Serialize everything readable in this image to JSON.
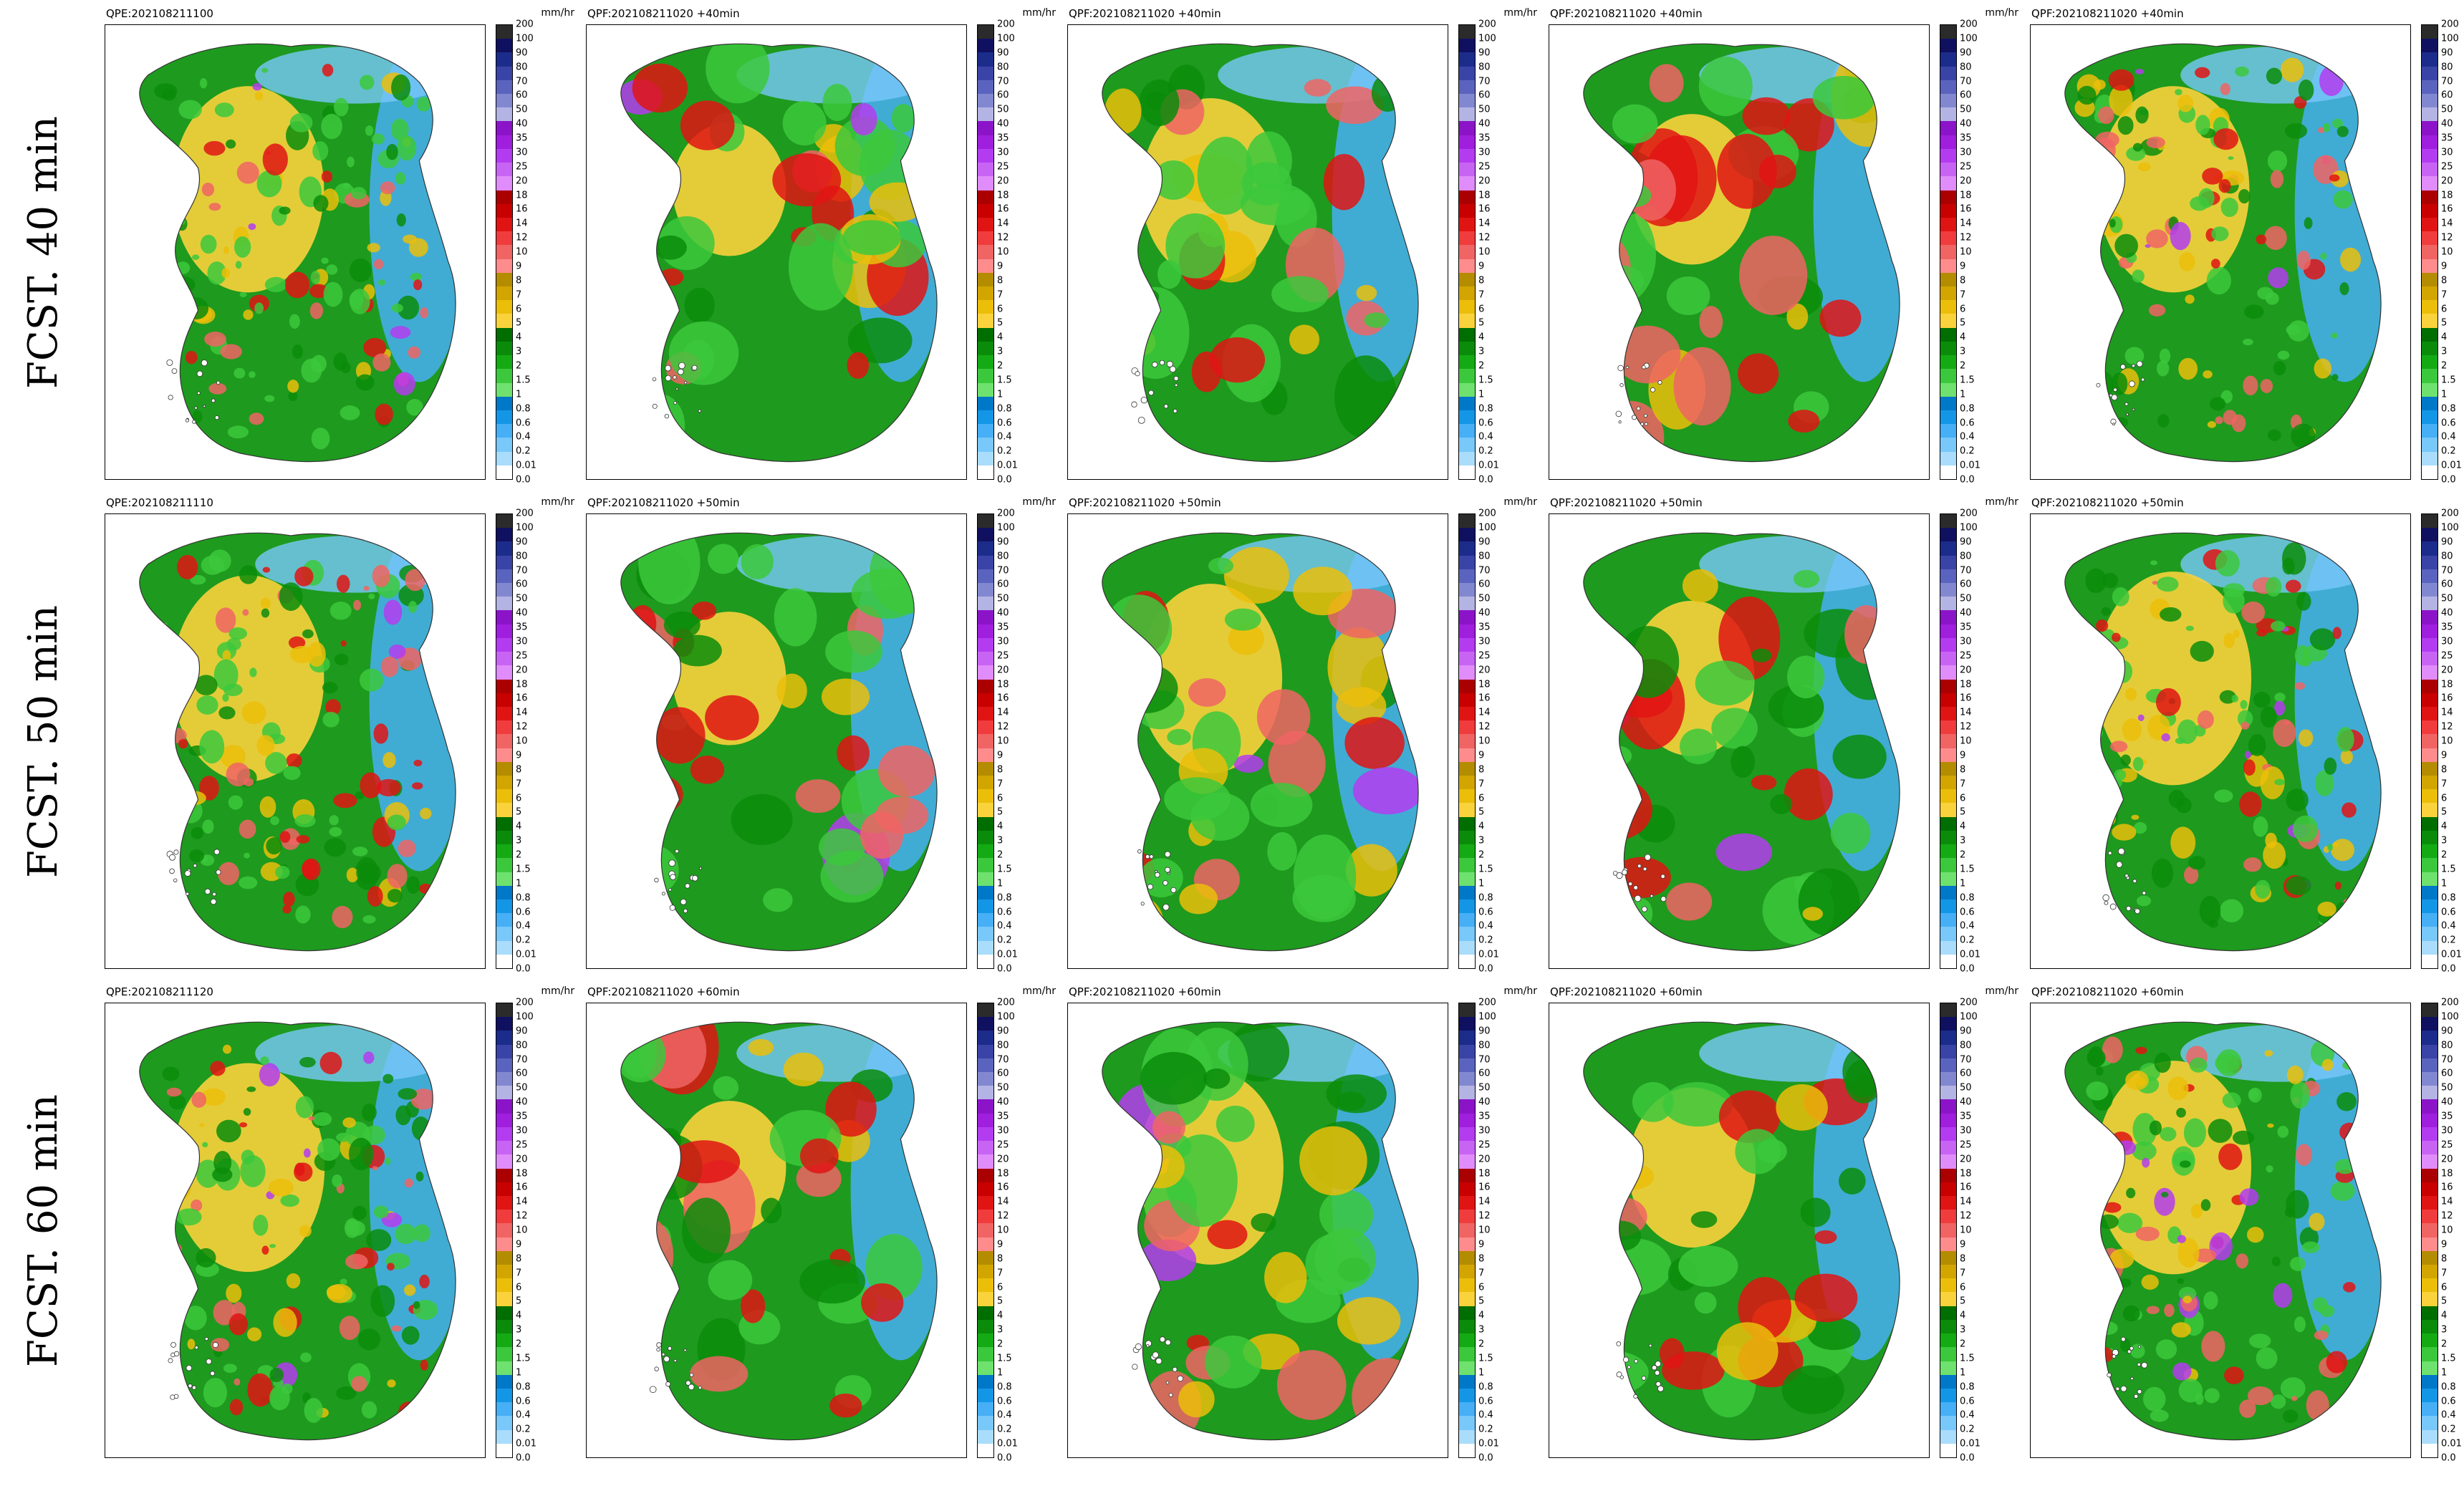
{
  "chart_data": {
    "type": "heatmap",
    "description_level": "grid of precipitation maps",
    "row_labels": [
      "FCST. 40 min",
      "FCST. 50 min",
      "FCST. 60 min"
    ],
    "colorbar": {
      "unit": "mm/hr",
      "levels": [
        "200",
        "100",
        "90",
        "80",
        "70",
        "60",
        "50",
        "40",
        "35",
        "30",
        "25",
        "20",
        "18",
        "16",
        "14",
        "12",
        "10",
        "9",
        "8",
        "7",
        "6",
        "5",
        "4",
        "3",
        "2",
        "1.5",
        "1",
        "0.8",
        "0.6",
        "0.4",
        "0.2",
        "0.01",
        "0.0"
      ],
      "colors": [
        "#2b2b2b",
        "#101060",
        "#1c2c8a",
        "#3a44a6",
        "#5a64be",
        "#8288d0",
        "#b4b4e4",
        "#8c14c8",
        "#a01ede",
        "#b43cf0",
        "#c864f4",
        "#e08cfa",
        "#aa0000",
        "#c80000",
        "#e11414",
        "#f03c3c",
        "#f06464",
        "#ff8c8c",
        "#b48c00",
        "#d2a500",
        "#ebbe0a",
        "#fad23c",
        "#006e00",
        "#0a8c0a",
        "#14aa14",
        "#3cc83c",
        "#6ee16e",
        "#0078c8",
        "#1496e6",
        "#46aff5",
        "#78c8fa",
        "#aadcfc",
        "#ffffff"
      ]
    },
    "panels": [
      [
        {
          "title": "QPE:202108211100",
          "intensity": 0.85,
          "seed": 11,
          "texture": "noisy"
        },
        {
          "title": "QPF:202108211020 +40min",
          "intensity": 0.55,
          "seed": 12,
          "texture": "smooth"
        },
        {
          "title": "QPF:202108211020 +40min",
          "intensity": 0.75,
          "seed": 13,
          "texture": "smooth"
        },
        {
          "title": "QPF:202108211020 +40min",
          "intensity": 0.62,
          "seed": 14,
          "texture": "smooth"
        },
        {
          "title": "QPF:202108211020 +40min",
          "intensity": 0.85,
          "seed": 15,
          "texture": "noisy"
        }
      ],
      [
        {
          "title": "QPE:202108211110",
          "intensity": 0.85,
          "seed": 21,
          "texture": "noisy"
        },
        {
          "title": "QPF:202108211020 +50min",
          "intensity": 0.55,
          "seed": 22,
          "texture": "smooth"
        },
        {
          "title": "QPF:202108211020 +50min",
          "intensity": 0.78,
          "seed": 23,
          "texture": "smooth"
        },
        {
          "title": "QPF:202108211020 +50min",
          "intensity": 0.64,
          "seed": 24,
          "texture": "smooth"
        },
        {
          "title": "QPF:202108211020 +50min",
          "intensity": 0.88,
          "seed": 25,
          "texture": "noisy"
        }
      ],
      [
        {
          "title": "QPE:202108211120",
          "intensity": 0.86,
          "seed": 31,
          "texture": "noisy"
        },
        {
          "title": "QPF:202108211020 +60min",
          "intensity": 0.55,
          "seed": 32,
          "texture": "smooth"
        },
        {
          "title": "QPF:202108211020 +60min",
          "intensity": 0.8,
          "seed": 33,
          "texture": "smooth"
        },
        {
          "title": "QPF:202108211020 +60min",
          "intensity": 0.66,
          "seed": 34,
          "texture": "smooth"
        },
        {
          "title": "QPF:202108211020 +60min",
          "intensity": 0.88,
          "seed": 35,
          "texture": "noisy"
        }
      ]
    ]
  }
}
